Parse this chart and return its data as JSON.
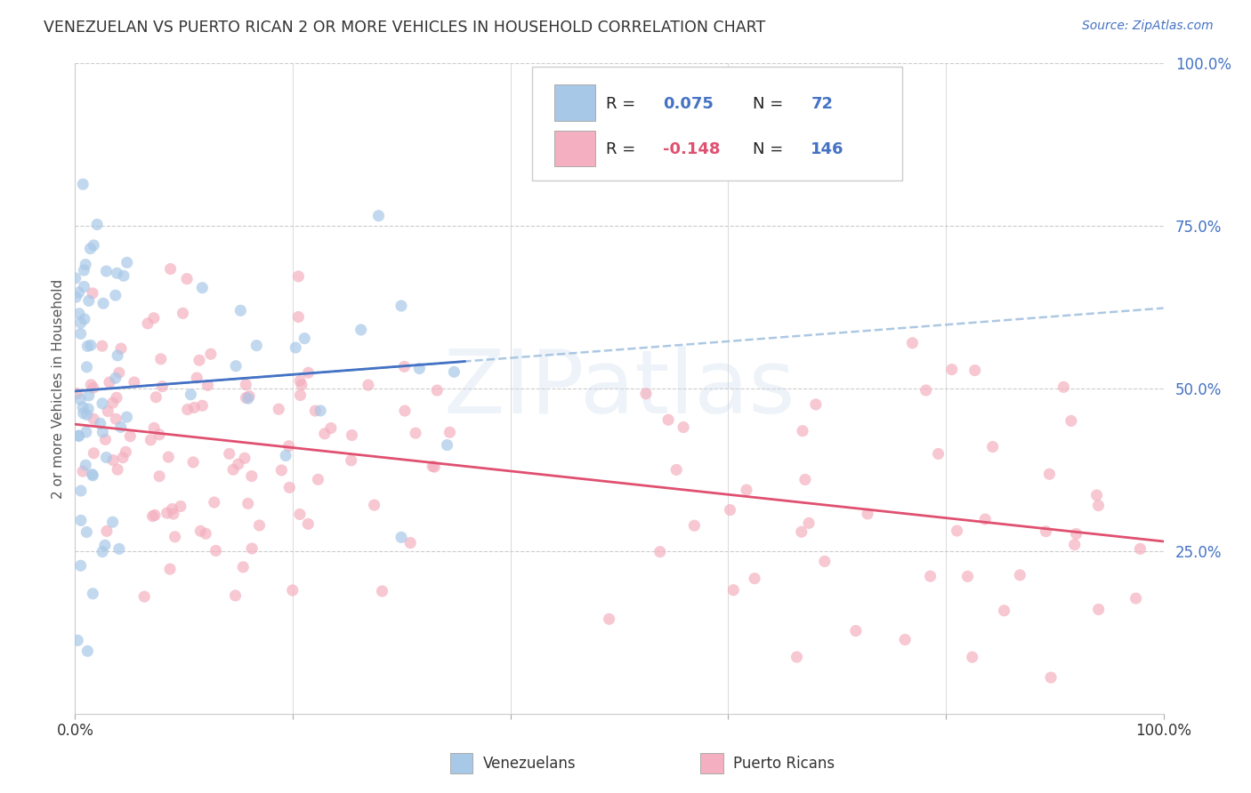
{
  "title": "VENEZUELAN VS PUERTO RICAN 2 OR MORE VEHICLES IN HOUSEHOLD CORRELATION CHART",
  "source": "Source: ZipAtlas.com",
  "ylabel": "2 or more Vehicles in Household",
  "venezuelan_R": 0.075,
  "venezuelan_N": 72,
  "puertoRican_R": -0.148,
  "puertoRican_N": 146,
  "venezuelan_color": "#a8c8e8",
  "puertoRican_color": "#f4b0c0",
  "venezuelan_line_color": "#4472c4",
  "puertoRican_line_color": "#e05070",
  "venezuelan_dash_color": "#99bbdd",
  "background_color": "#ffffff",
  "grid_color": "#cccccc",
  "watermark": "ZIPatlas",
  "title_color": "#333333",
  "source_color": "#4472c4",
  "ytick_color": "#4472c4",
  "xtick_color": "#333333"
}
